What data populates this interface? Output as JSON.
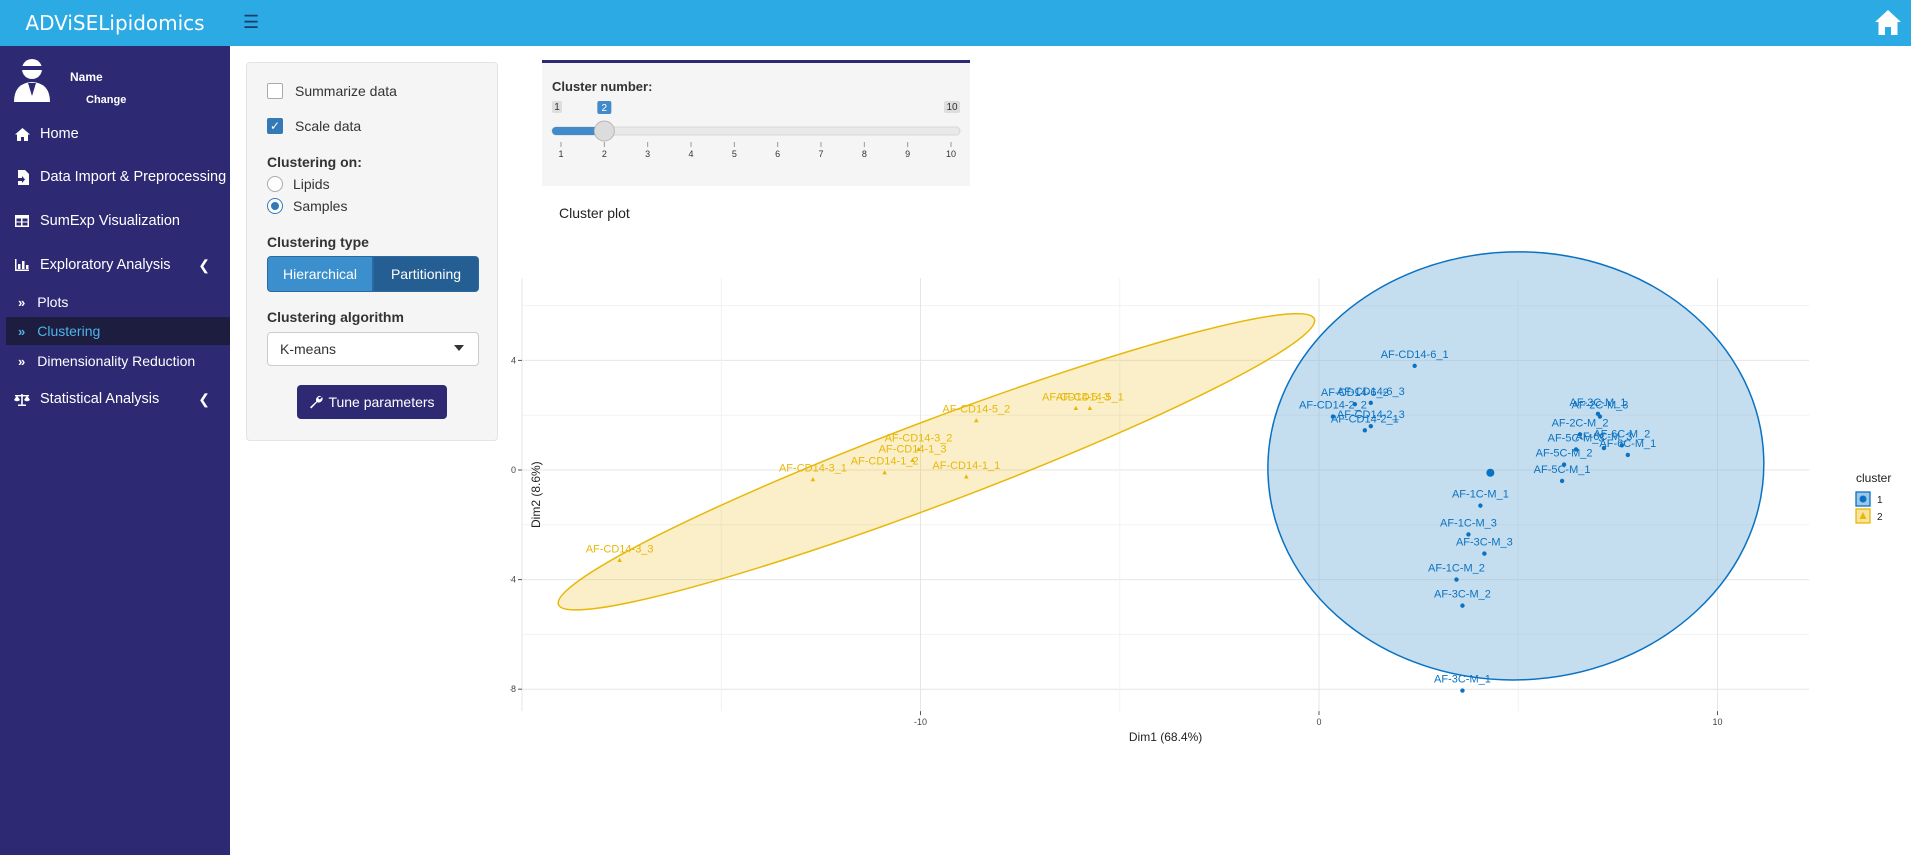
{
  "app": {
    "title": "ADViSELipidomics",
    "menu_icon": "hamburger-icon",
    "home_icon": "home-icon"
  },
  "user": {
    "name": "Name",
    "change": "Change"
  },
  "sidebar": {
    "items": [
      {
        "label": "Home",
        "icon": "home-icon"
      },
      {
        "label": "Data Import & Preprocessing",
        "icon": "file-import-icon"
      },
      {
        "label": "SumExp Visualization",
        "icon": "table-icon"
      },
      {
        "label": "Exploratory Analysis",
        "icon": "bar-chart-icon"
      },
      {
        "label": "Statistical Analysis",
        "icon": "balance-icon"
      }
    ],
    "subitems": [
      {
        "label": "Plots"
      },
      {
        "label": "Clustering"
      },
      {
        "label": "Dimensionality Reduction"
      }
    ],
    "active": "Clustering"
  },
  "controls": {
    "summarize_label": "Summarize data",
    "summarize_checked": false,
    "scale_label": "Scale data",
    "scale_checked": true,
    "clustering_on_label": "Clustering on:",
    "clustering_on_options": [
      "Lipids",
      "Samples"
    ],
    "clustering_on_selected": "Samples",
    "clustering_type_label": "Clustering type",
    "clustering_type_options": [
      "Hierarchical",
      "Partitioning"
    ],
    "clustering_type_selected": "Partitioning",
    "algorithm_label": "Clustering algorithm",
    "algorithm_value": "K-means",
    "tune_label": "Tune parameters"
  },
  "slider": {
    "label": "Cluster number:",
    "min": 1,
    "max": 10,
    "value": 2,
    "min_label": "1",
    "max_label": "10",
    "value_label": "2",
    "ticks": [
      "1",
      "2",
      "3",
      "4",
      "5",
      "6",
      "7",
      "8",
      "9",
      "10"
    ]
  },
  "plot": {
    "title": "Cluster plot"
  },
  "colors": {
    "cluster1": "#0a72c2",
    "cluster2": "#e8b808",
    "sidebar": "#2d2a73",
    "topbar": "#2caae3"
  },
  "chart_data": {
    "type": "scatter",
    "xlabel": "Dim1 (68.4%)",
    "ylabel": "Dim2 (8.6%)",
    "xlim": [
      -20,
      12.3
    ],
    "ylim": [
      -8.8,
      7
    ],
    "xticks": [
      -10,
      0,
      10
    ],
    "yticks": [
      -8,
      -4,
      0,
      4
    ],
    "xtick_labels": [
      "-10",
      "0",
      "10"
    ],
    "ytick_labels": [
      "-8",
      "-4",
      "0",
      "4"
    ],
    "grid": true,
    "legend": {
      "title": "cluster",
      "position": "right",
      "entries": [
        "1",
        "2"
      ]
    },
    "centroids": [
      {
        "cluster": "1",
        "x": 4.3,
        "y": -0.1
      }
    ],
    "series": [
      {
        "name": "1",
        "points": [
          {
            "label": "AF-CD14-6_1",
            "x": 2.4,
            "y": 3.8
          },
          {
            "label": "AF-CD14-6_2",
            "x": 0.9,
            "y": 2.4
          },
          {
            "label": "AF-CD14-6_3",
            "x": 1.3,
            "y": 2.45
          },
          {
            "label": "AF-CD14-2_2",
            "x": 0.35,
            "y": 1.95
          },
          {
            "label": "AF-CD14-2_3",
            "x": 1.3,
            "y": 1.6
          },
          {
            "label": "AF-CD14-2_1",
            "x": 1.15,
            "y": 1.45
          },
          {
            "label": "AF-3C-M_1",
            "x": 7.0,
            "y": 2.05
          },
          {
            "label": "AF-2C-M_3",
            "x": 7.05,
            "y": 1.95
          },
          {
            "label": "AF-2C-M_2",
            "x": 6.55,
            "y": 1.3
          },
          {
            "label": "AF-6C-M_2",
            "x": 7.6,
            "y": 0.9
          },
          {
            "label": "AF-6C-M_3",
            "x": 7.15,
            "y": 0.8
          },
          {
            "label": "AF-6C-M_1",
            "x": 7.75,
            "y": 0.55
          },
          {
            "label": "AF-5C-M_3",
            "x": 6.45,
            "y": 0.75
          },
          {
            "label": "AF-5C-M_2",
            "x": 6.15,
            "y": 0.2
          },
          {
            "label": "AF-5C-M_1",
            "x": 6.1,
            "y": -0.4
          },
          {
            "label": "AF-1C-M_1",
            "x": 4.05,
            "y": -1.3
          },
          {
            "label": "AF-1C-M_3",
            "x": 3.75,
            "y": -2.35
          },
          {
            "label": "AF-3C-M_3",
            "x": 4.15,
            "y": -3.05
          },
          {
            "label": "AF-1C-M_2",
            "x": 3.45,
            "y": -4.0
          },
          {
            "label": "AF-3C-M_2",
            "x": 3.6,
            "y": -4.95
          },
          {
            "label": "AF-3C-M_1",
            "x": 3.6,
            "y": -8.05
          }
        ]
      },
      {
        "name": "2",
        "points": [
          {
            "label": "AF-CD14-5_3",
            "x": -6.1,
            "y": 2.25
          },
          {
            "label": "AF-CD14-5_1",
            "x": -5.75,
            "y": 2.25
          },
          {
            "label": "AF-CD14-5_2",
            "x": -8.6,
            "y": 1.8
          },
          {
            "label": "AF-CD14-3_2",
            "x": -10.05,
            "y": 0.75
          },
          {
            "label": "AF-CD14-1_3",
            "x": -10.2,
            "y": 0.35
          },
          {
            "label": "AF-CD14-1_2",
            "x": -10.9,
            "y": -0.1
          },
          {
            "label": "AF-CD14-1_1",
            "x": -8.85,
            "y": -0.25
          },
          {
            "label": "AF-CD14-3_1",
            "x": -12.7,
            "y": -0.35
          },
          {
            "label": "AF-CD14-3_3",
            "x": -17.55,
            "y": -3.3
          }
        ]
      }
    ]
  }
}
